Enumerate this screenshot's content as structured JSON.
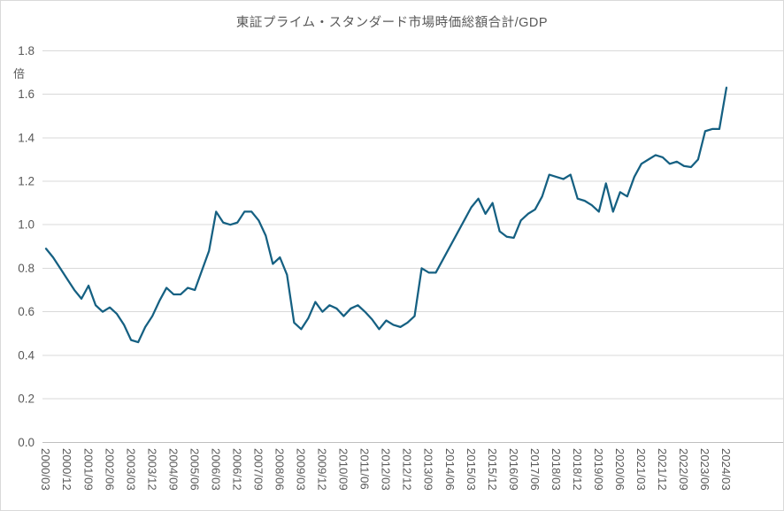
{
  "page": {
    "background_color": "#ffffff",
    "frame_border_color": "#d9d9d9"
  },
  "chart_data": {
    "type": "line",
    "title": "東証プライム・スタンダード市場時価総額合計/GDP",
    "legend": "none",
    "grid": "horizontal",
    "y_axis": {
      "unit_label": "倍",
      "min": 0.0,
      "max": 1.8,
      "step": 0.2,
      "ticks": [
        "0.0",
        "0.2",
        "0.4",
        "0.6",
        "0.8",
        "1.0",
        "1.2",
        "1.4",
        "1.6",
        "1.8"
      ]
    },
    "x_axis": {
      "label_interval": 3,
      "labels_shown": [
        "2000/03",
        "2000/12",
        "2001/09",
        "2002/06",
        "2003/03",
        "2003/12",
        "2004/09",
        "2005/06",
        "2006/03",
        "2006/12",
        "2007/09",
        "2008/06",
        "2009/03",
        "2009/12",
        "2010/09",
        "2011/06",
        "2012/03",
        "2012/12",
        "2013/09",
        "2014/06",
        "2015/03",
        "2015/12",
        "2016/09",
        "2017/06",
        "2018/03",
        "2018/12",
        "2019/09",
        "2020/06",
        "2021/03",
        "2021/12",
        "2022/09",
        "2023/06",
        "2024/03"
      ]
    },
    "categories": [
      "2000/03",
      "2000/06",
      "2000/09",
      "2000/12",
      "2001/03",
      "2001/06",
      "2001/09",
      "2001/12",
      "2002/03",
      "2002/06",
      "2002/09",
      "2002/12",
      "2003/03",
      "2003/06",
      "2003/09",
      "2003/12",
      "2004/03",
      "2004/06",
      "2004/09",
      "2004/12",
      "2005/03",
      "2005/06",
      "2005/09",
      "2005/12",
      "2006/03",
      "2006/06",
      "2006/09",
      "2006/12",
      "2007/03",
      "2007/06",
      "2007/09",
      "2007/12",
      "2008/03",
      "2008/06",
      "2008/09",
      "2008/12",
      "2009/03",
      "2009/06",
      "2009/09",
      "2009/12",
      "2010/03",
      "2010/06",
      "2010/09",
      "2010/12",
      "2011/03",
      "2011/06",
      "2011/09",
      "2011/12",
      "2012/03",
      "2012/06",
      "2012/09",
      "2012/12",
      "2013/03",
      "2013/06",
      "2013/09",
      "2013/12",
      "2014/03",
      "2014/06",
      "2014/09",
      "2014/12",
      "2015/03",
      "2015/06",
      "2015/09",
      "2015/12",
      "2016/03",
      "2016/06",
      "2016/09",
      "2016/12",
      "2017/03",
      "2017/06",
      "2017/09",
      "2017/12",
      "2018/03",
      "2018/06",
      "2018/09",
      "2018/12",
      "2019/03",
      "2019/06",
      "2019/09",
      "2019/12",
      "2020/03",
      "2020/06",
      "2020/09",
      "2020/12",
      "2021/03",
      "2021/06",
      "2021/09",
      "2021/12",
      "2022/03",
      "2022/06",
      "2022/09",
      "2022/12",
      "2023/03",
      "2023/06",
      "2023/09",
      "2023/12",
      "2024/03"
    ],
    "values": [
      0.89,
      0.85,
      0.8,
      0.75,
      0.7,
      0.66,
      0.72,
      0.63,
      0.6,
      0.62,
      0.59,
      0.54,
      0.47,
      0.46,
      0.53,
      0.58,
      0.65,
      0.71,
      0.68,
      0.68,
      0.71,
      0.7,
      0.79,
      0.88,
      1.06,
      1.01,
      1.0,
      1.01,
      1.06,
      1.06,
      1.02,
      0.95,
      0.82,
      0.85,
      0.77,
      0.55,
      0.52,
      0.57,
      0.645,
      0.6,
      0.63,
      0.615,
      0.58,
      0.615,
      0.63,
      0.6,
      0.565,
      0.52,
      0.56,
      0.54,
      0.53,
      0.55,
      0.58,
      0.8,
      0.78,
      0.78,
      0.84,
      0.9,
      0.96,
      1.02,
      1.08,
      1.12,
      1.05,
      1.1,
      0.97,
      0.945,
      0.94,
      1.02,
      1.05,
      1.07,
      1.13,
      1.23,
      1.22,
      1.21,
      1.23,
      1.12,
      1.11,
      1.09,
      1.06,
      1.19,
      1.06,
      1.15,
      1.13,
      1.22,
      1.28,
      1.3,
      1.32,
      1.31,
      1.28,
      1.29,
      1.27,
      1.265,
      1.3,
      1.43,
      1.44,
      1.44,
      1.63
    ],
    "styles": {
      "line_color": "#156082",
      "gridline_color": "#d9d9d9",
      "axis_line_color": "#bfbfbf",
      "text_color": "#595959"
    }
  }
}
